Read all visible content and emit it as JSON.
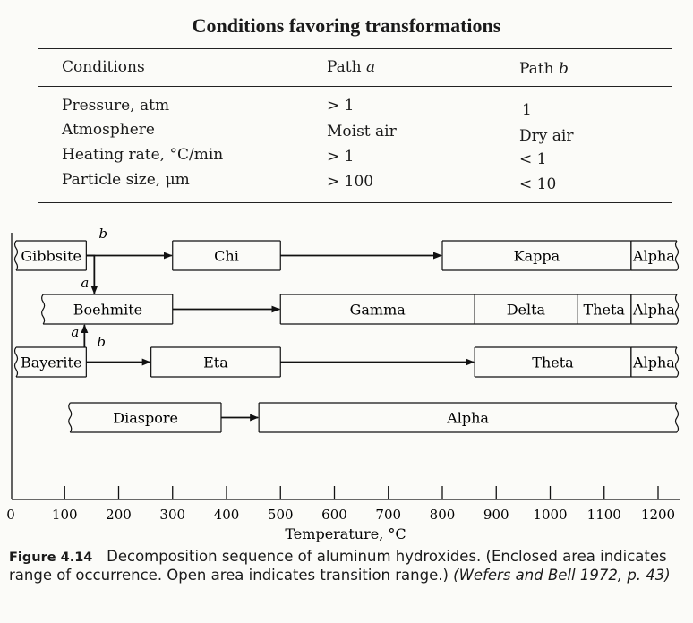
{
  "title": "Conditions favoring transformations",
  "table": {
    "headers": {
      "conditions": "Conditions",
      "path_a": "Path a",
      "path_b": "Path b"
    },
    "rows": [
      {
        "condition": "Pressure, atm",
        "path_a": "> 1",
        "path_b": "1"
      },
      {
        "condition": "Atmosphere",
        "path_a": "Moist air",
        "path_b": "Dry air"
      },
      {
        "condition": "Heating rate, °C/min",
        "path_a": "> 1",
        "path_b": "< 1"
      },
      {
        "condition": "Particle size, μm",
        "path_a": "> 100",
        "path_b": "< 10"
      }
    ]
  },
  "diagram": {
    "axis": {
      "label": "Temperature, °C",
      "min": 0,
      "max": 1200,
      "ticks": [
        "0",
        "100",
        "200",
        "300",
        "400",
        "500",
        "600",
        "700",
        "800",
        "900",
        "1000",
        "1100",
        "1200"
      ]
    },
    "boxes": [
      {
        "id": "gibbsite",
        "label": "Gibbsite",
        "row": 0,
        "from": 0,
        "to": 140,
        "wavy_left": true
      },
      {
        "id": "chi",
        "label": "Chi",
        "row": 0,
        "from": 300,
        "to": 500
      },
      {
        "id": "kappa",
        "label": "Kappa",
        "row": 0,
        "from": 800,
        "to": 1150
      },
      {
        "id": "alpha-1",
        "label": "Alpha",
        "row": 0,
        "from": 1150,
        "to": 1250,
        "wavy_right": true
      },
      {
        "id": "boehmite",
        "label": "Boehmite",
        "row": 1,
        "from": 50,
        "to": 300,
        "wavy_left": true
      },
      {
        "id": "gamma",
        "label": "Gamma",
        "row": 1,
        "from": 500,
        "to": 860
      },
      {
        "id": "delta",
        "label": "Delta",
        "row": 1,
        "from": 860,
        "to": 1050
      },
      {
        "id": "theta-1",
        "label": "Theta",
        "row": 1,
        "from": 1050,
        "to": 1150
      },
      {
        "id": "alpha-2",
        "label": "Alpha",
        "row": 1,
        "from": 1150,
        "to": 1250,
        "wavy_right": true
      },
      {
        "id": "bayerite",
        "label": "Bayerite",
        "row": 2,
        "from": 0,
        "to": 140,
        "wavy_left": true
      },
      {
        "id": "eta",
        "label": "Eta",
        "row": 2,
        "from": 260,
        "to": 500
      },
      {
        "id": "theta-2",
        "label": "Theta",
        "row": 2,
        "from": 860,
        "to": 1150
      },
      {
        "id": "alpha-3",
        "label": "Alpha",
        "row": 2,
        "from": 1150,
        "to": 1250,
        "wavy_right": true
      },
      {
        "id": "diaspore",
        "label": "Diaspore",
        "row": 3,
        "from": 100,
        "to": 390,
        "wavy_left": true
      },
      {
        "id": "alpha-4",
        "label": "Alpha",
        "row": 3,
        "from": 460,
        "to": 1250,
        "wavy_right": true
      }
    ],
    "path_labels": [
      "b",
      "a",
      "a",
      "b"
    ]
  },
  "caption": {
    "figure": "Figure 4.14",
    "text": "Decomposition sequence of aluminum hydroxides. (Enclosed area indicates range of occurrence. Open area indicates transition range.)",
    "citation": "(Wefers and Bell 1972, p. 43)"
  }
}
